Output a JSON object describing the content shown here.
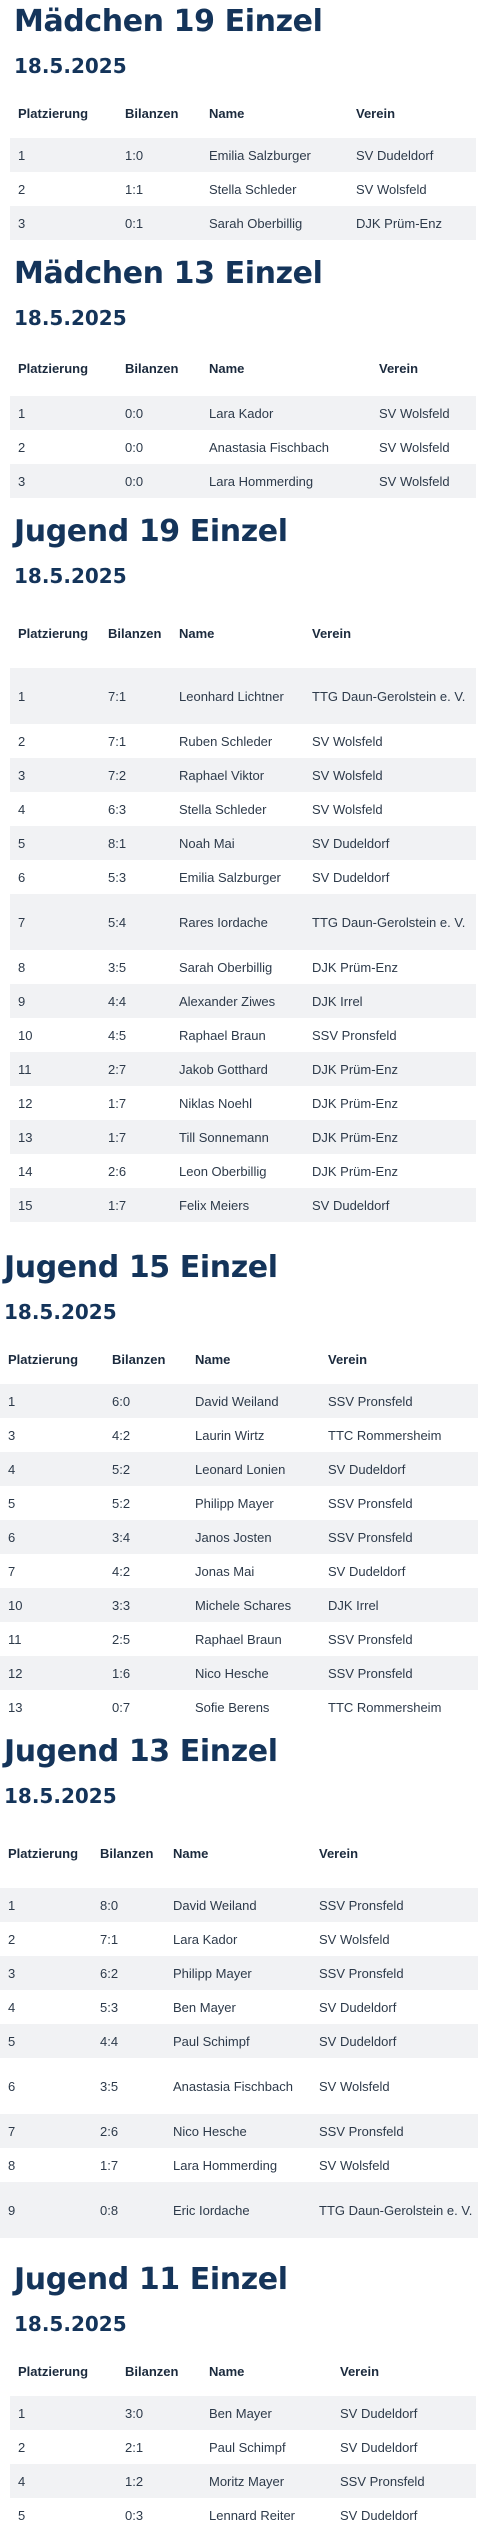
{
  "table_headers": [
    "Platzierung",
    "Bilanzen",
    "Name",
    "Verein"
  ],
  "sections": [
    {
      "title": "Mädchen 19 Einzel",
      "date": "18.5.2025",
      "rows": [
        [
          "1",
          "1:0",
          "Emilia Salzburger",
          "SV Dudeldorf"
        ],
        [
          "2",
          "1:1",
          "Stella Schleder",
          "SV Wolsfeld"
        ],
        [
          "3",
          "0:1",
          "Sarah Oberbillig",
          "DJK Prüm-Enz"
        ]
      ]
    },
    {
      "title": "Mädchen 13 Einzel",
      "date": "18.5.2025",
      "rows": [
        [
          "1",
          "0:0",
          "Lara Kador",
          "SV Wolsfeld"
        ],
        [
          "2",
          "0:0",
          "Anastasia Fischbach",
          "SV Wolsfeld"
        ],
        [
          "3",
          "0:0",
          "Lara Hommerding",
          "SV Wolsfeld"
        ]
      ]
    },
    {
      "title": "Jugend 19 Einzel",
      "date": "18.5.2025",
      "rows": [
        [
          "1",
          "7:1",
          "Leonhard Lichtner",
          "TTG Daun-Gerolstein e. V."
        ],
        [
          "2",
          "7:1",
          "Ruben Schleder",
          "SV Wolsfeld"
        ],
        [
          "3",
          "7:2",
          "Raphael Viktor",
          "SV Wolsfeld"
        ],
        [
          "4",
          "6:3",
          "Stella Schleder",
          "SV Wolsfeld"
        ],
        [
          "5",
          "8:1",
          "Noah Mai",
          "SV Dudeldorf"
        ],
        [
          "6",
          "5:3",
          "Emilia Salzburger",
          "SV Dudeldorf"
        ],
        [
          "7",
          "5:4",
          "Rares Iordache",
          "TTG Daun-Gerolstein e. V."
        ],
        [
          "8",
          "3:5",
          "Sarah Oberbillig",
          "DJK Prüm-Enz"
        ],
        [
          "9",
          "4:4",
          "Alexander Ziwes",
          "DJK Irrel"
        ],
        [
          "10",
          "4:5",
          "Raphael Braun",
          "SSV Pronsfeld"
        ],
        [
          "11",
          "2:7",
          "Jakob Gotthard",
          "DJK Prüm-Enz"
        ],
        [
          "12",
          "1:7",
          "Niklas Noehl",
          "DJK Prüm-Enz"
        ],
        [
          "13",
          "1:7",
          "Till Sonnemann",
          "DJK Prüm-Enz"
        ],
        [
          "14",
          "2:6",
          "Leon Oberbillig",
          "DJK Prüm-Enz"
        ],
        [
          "15",
          "1:7",
          "Felix Meiers",
          "SV Dudeldorf"
        ]
      ]
    },
    {
      "title": "Jugend 15 Einzel",
      "date": "18.5.2025",
      "rows": [
        [
          "1",
          "6:0",
          "David Weiland",
          "SSV Pronsfeld"
        ],
        [
          "3",
          "4:2",
          "Laurin Wirtz",
          "TTC Rommersheim"
        ],
        [
          "4",
          "5:2",
          "Leonard Lonien",
          "SV Dudeldorf"
        ],
        [
          "5",
          "5:2",
          "Philipp Mayer",
          "SSV Pronsfeld"
        ],
        [
          "6",
          "3:4",
          "Janos Josten",
          "SSV Pronsfeld"
        ],
        [
          "7",
          "4:2",
          "Jonas Mai",
          "SV Dudeldorf"
        ],
        [
          "10",
          "3:3",
          "Michele Schares",
          "DJK Irrel"
        ],
        [
          "11",
          "2:5",
          "Raphael Braun",
          "SSV Pronsfeld"
        ],
        [
          "12",
          "1:6",
          "Nico Hesche",
          "SSV Pronsfeld"
        ],
        [
          "13",
          "0:7",
          "Sofie Berens",
          "TTC Rommersheim"
        ]
      ]
    },
    {
      "title": "Jugend 13 Einzel",
      "date": "18.5.2025",
      "rows": [
        [
          "1",
          "8:0",
          "David Weiland",
          "SSV Pronsfeld"
        ],
        [
          "2",
          "7:1",
          "Lara Kador",
          "SV Wolsfeld"
        ],
        [
          "3",
          "6:2",
          "Philipp Mayer",
          "SSV Pronsfeld"
        ],
        [
          "4",
          "5:3",
          "Ben Mayer",
          "SV Dudeldorf"
        ],
        [
          "5",
          "4:4",
          "Paul Schimpf",
          "SV Dudeldorf"
        ],
        [
          "6",
          "3:5",
          "Anastasia Fischbach",
          "SV Wolsfeld"
        ],
        [
          "7",
          "2:6",
          "Nico Hesche",
          "SSV Pronsfeld"
        ],
        [
          "8",
          "1:7",
          "Lara Hommerding",
          "SV Wolsfeld"
        ],
        [
          "9",
          "0:8",
          "Eric Iordache",
          "TTG Daun-Gerolstein e. V."
        ]
      ]
    },
    {
      "title": "Jugend 11 Einzel",
      "date": "18.5.2025",
      "rows": [
        [
          "1",
          "3:0",
          "Ben Mayer",
          "SV Dudeldorf"
        ],
        [
          "2",
          "2:1",
          "Paul Schimpf",
          "SV Dudeldorf"
        ],
        [
          "4",
          "1:2",
          "Moritz Mayer",
          "SSV Pronsfeld"
        ],
        [
          "5",
          "0:3",
          "Lennard Reiter",
          "SV Dudeldorf"
        ]
      ]
    }
  ]
}
